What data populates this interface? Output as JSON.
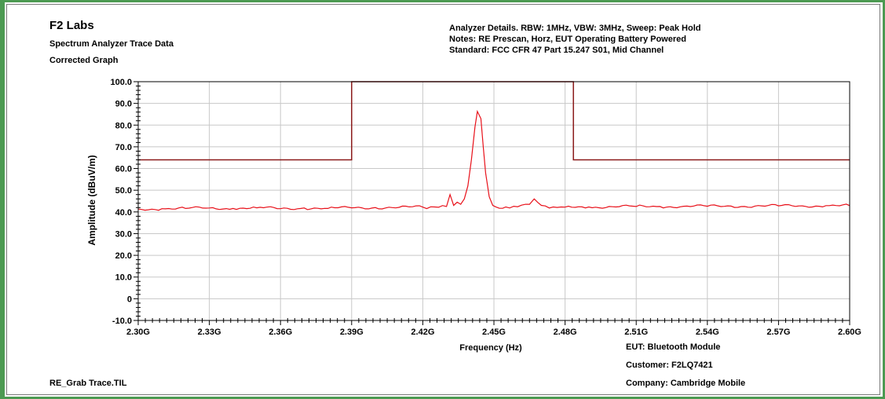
{
  "header": {
    "company": "F2 Labs",
    "subtitle1": "Spectrum Analyzer Trace Data",
    "subtitle2": "Corrected Graph",
    "analyzer_details": "Analyzer Details.  RBW: 1MHz, VBW: 3MHz, Sweep: Peak Hold",
    "notes": "Notes:  RE Prescan, Horz, EUT Operating Battery Powered",
    "standard": "Standard:  FCC CFR 47 Part 15.247 S01, Mid Channel"
  },
  "footer": {
    "file_name": "RE_Grab Trace.TIL",
    "eut": "EUT:  Bluetooth Module",
    "customer": "Customer:  F2LQ7421",
    "company": "Company:  Cambridge Mobile"
  },
  "colors": {
    "frame": "#4c9a52",
    "trace": "#e8111a",
    "limit": "#8b1a1a",
    "grid": "#c8c8c8"
  },
  "chart_data": {
    "type": "line",
    "title": "",
    "xlabel": "Frequency (Hz)",
    "ylabel": "Amplitude (dBuV/m)",
    "xlim": [
      2.3,
      2.6
    ],
    "ylim": [
      -10,
      100
    ],
    "x_unit": "GHz",
    "x_ticks": [
      2.3,
      2.33,
      2.36,
      2.39,
      2.42,
      2.45,
      2.48,
      2.51,
      2.54,
      2.57,
      2.6
    ],
    "x_tick_labels": [
      "2.30G",
      "2.33G",
      "2.36G",
      "2.39G",
      "2.42G",
      "2.45G",
      "2.48G",
      "2.51G",
      "2.54G",
      "2.57G",
      "2.60G"
    ],
    "y_ticks": [
      -10,
      0,
      10,
      20,
      30,
      40,
      50,
      60,
      70,
      80,
      90,
      100
    ],
    "y_tick_labels": [
      "-10.0",
      "0",
      "10.0",
      "20.0",
      "30.0",
      "40.0",
      "50.0",
      "60.0",
      "70.0",
      "80.0",
      "90.0",
      "100.0"
    ],
    "grid": true,
    "legend": "none",
    "series": [
      {
        "role": "limit",
        "color": "#8b1a1a",
        "x": [
          2.3,
          2.39,
          2.39,
          2.4835,
          2.4835,
          2.6
        ],
        "y": [
          64,
          64,
          100,
          100,
          64,
          64
        ]
      },
      {
        "role": "trace",
        "color": "#e8111a",
        "x": [
          2.3,
          2.31,
          2.32,
          2.33,
          2.34,
          2.35,
          2.36,
          2.37,
          2.38,
          2.39,
          2.4,
          2.41,
          2.42,
          2.425,
          2.43,
          2.4315,
          2.433,
          2.4345,
          2.436,
          2.4375,
          2.439,
          2.4405,
          2.442,
          2.443,
          2.4445,
          2.4455,
          2.4465,
          2.448,
          2.4495,
          2.451,
          2.455,
          2.46,
          2.465,
          2.467,
          2.47,
          2.475,
          2.48,
          2.49,
          2.5,
          2.51,
          2.52,
          2.53,
          2.54,
          2.55,
          2.56,
          2.57,
          2.58,
          2.59,
          2.6
        ],
        "y": [
          41.3,
          41.5,
          41.6,
          41.8,
          41.6,
          41.9,
          41.5,
          41.8,
          41.6,
          41.9,
          42.0,
          42.1,
          42.2,
          42.3,
          42.5,
          48.0,
          43.0,
          44.5,
          43.5,
          46.0,
          52.0,
          64.0,
          79.0,
          86.3,
          83.0,
          70.0,
          58.0,
          47.0,
          43.0,
          42.2,
          42.3,
          42.4,
          43.5,
          46.0,
          43.0,
          42.3,
          42.2,
          42.3,
          42.4,
          42.5,
          42.5,
          42.6,
          42.6,
          42.7,
          42.7,
          42.8,
          42.8,
          42.9,
          42.9
        ]
      }
    ]
  }
}
